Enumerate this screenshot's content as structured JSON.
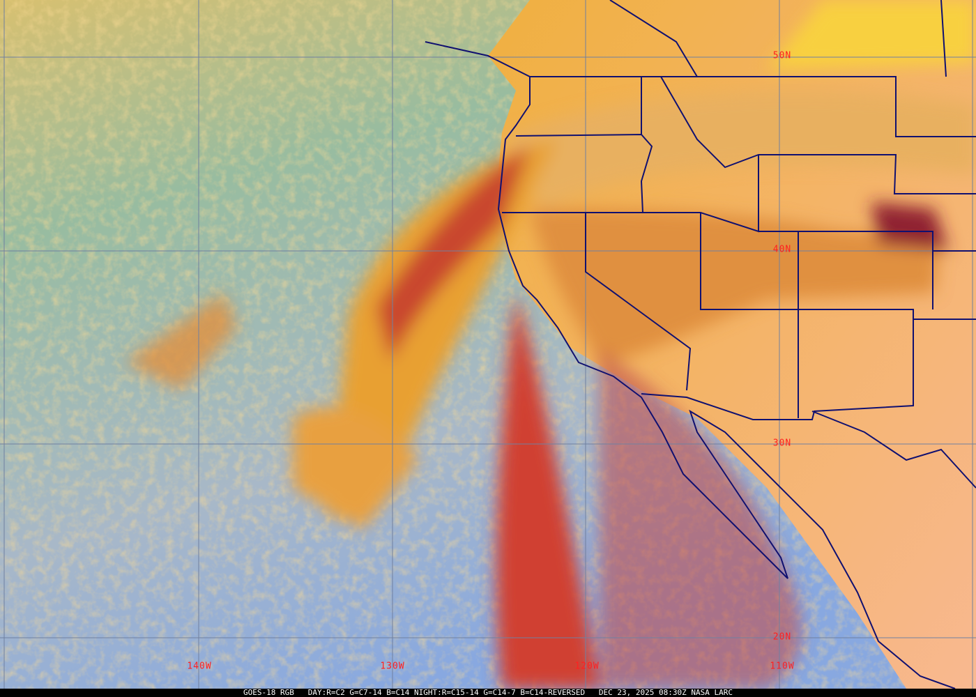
{
  "image": {
    "caption": "GOES-18 RGB   DAY:R=C2 G=C7-14 B=C14 NIGHT:R=C15-14 G=C14-7 B=C14-REVERSED   DEC 23, 2025 08:30Z NASA LARC",
    "latitude_labels": [
      "50N",
      "40N",
      "30N",
      "20N"
    ],
    "longitude_labels": [
      "140W",
      "130W",
      "120W",
      "110W"
    ],
    "colors": {
      "ocean": "#8fb8d8",
      "clear_land": "#f4b070",
      "low_cloud": "#e8c060",
      "high_cloud": "#e89a30",
      "deep_cloud": "#b02030",
      "borders": "#101070",
      "grid": "#7080a0",
      "label": "#ff2020"
    }
  }
}
